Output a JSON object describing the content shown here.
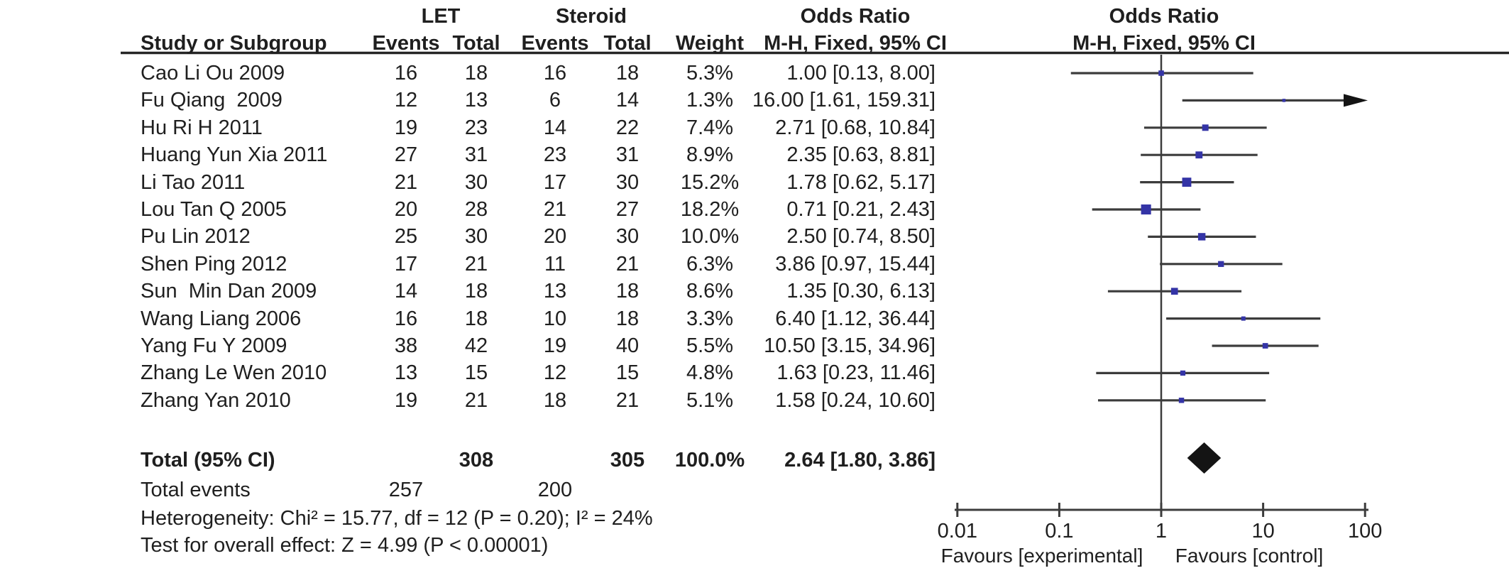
{
  "table": {
    "headers": {
      "study": "Study or Subgroup",
      "group1": "LET",
      "group2": "Steroid",
      "events1": "Events",
      "total1": "Total",
      "events2": "Events",
      "total2": "Total",
      "weight": "Weight",
      "or_title": "Odds Ratio",
      "or_method": "M-H, Fixed, 95% CI",
      "plot_title": "Odds Ratio",
      "plot_method": "M-H, Fixed, 95% CI"
    }
  },
  "footer": {
    "total_label": "Total (95% CI)",
    "total_t1": "308",
    "total_t2": "305",
    "total_weight": "100.0%",
    "total_or": "2.64 [1.80, 3.86]",
    "total_events_label": "Total events",
    "total_events_1": "257",
    "total_events_2": "200",
    "heterogeneity": "Heterogeneity: Chi² = 15.77, df = 12 (P = 0.20); I² = 24%",
    "overall_effect": "Test for overall effect: Z = 4.99 (P < 0.00001)"
  },
  "chart_data": {
    "type": "forest",
    "effect_measure": "Odds Ratio",
    "model": "M-H, Fixed, 95% CI",
    "x_axis": {
      "scale": "log",
      "ticks": [
        "0.01",
        "0.1",
        "1",
        "10",
        "100"
      ],
      "range": [
        0.01,
        100
      ],
      "label_left": "Favours [experimental]",
      "label_right": "Favours [control]"
    },
    "studies": [
      {
        "name": "Cao Li Ou 2009",
        "let_events": 16,
        "let_total": 18,
        "steroid_events": 16,
        "steroid_total": 18,
        "weight_label": "5.3%",
        "weight_pct": 5.3,
        "or": 1.0,
        "ci_low": 0.13,
        "ci_high": 8.0,
        "or_label": "1.00 [0.13, 8.00]"
      },
      {
        "name": "Fu Qiang  2009",
        "let_events": 12,
        "let_total": 13,
        "steroid_events": 6,
        "steroid_total": 14,
        "weight_label": "1.3%",
        "weight_pct": 1.3,
        "or": 16.0,
        "ci_low": 1.61,
        "ci_high": 159.31,
        "or_label": "16.00 [1.61, 159.31]"
      },
      {
        "name": "Hu Ri H 2011",
        "let_events": 19,
        "let_total": 23,
        "steroid_events": 14,
        "steroid_total": 22,
        "weight_label": "7.4%",
        "weight_pct": 7.4,
        "or": 2.71,
        "ci_low": 0.68,
        "ci_high": 10.84,
        "or_label": "2.71 [0.68, 10.84]"
      },
      {
        "name": "Huang Yun Xia 2011",
        "let_events": 27,
        "let_total": 31,
        "steroid_events": 23,
        "steroid_total": 31,
        "weight_label": "8.9%",
        "weight_pct": 8.9,
        "or": 2.35,
        "ci_low": 0.63,
        "ci_high": 8.81,
        "or_label": "2.35 [0.63, 8.81]"
      },
      {
        "name": "Li Tao 2011",
        "let_events": 21,
        "let_total": 30,
        "steroid_events": 17,
        "steroid_total": 30,
        "weight_label": "15.2%",
        "weight_pct": 15.2,
        "or": 1.78,
        "ci_low": 0.62,
        "ci_high": 5.17,
        "or_label": "1.78 [0.62, 5.17]"
      },
      {
        "name": "Lou Tan Q 2005",
        "let_events": 20,
        "let_total": 28,
        "steroid_events": 21,
        "steroid_total": 27,
        "weight_label": "18.2%",
        "weight_pct": 18.2,
        "or": 0.71,
        "ci_low": 0.21,
        "ci_high": 2.43,
        "or_label": "0.71 [0.21, 2.43]"
      },
      {
        "name": "Pu Lin 2012",
        "let_events": 25,
        "let_total": 30,
        "steroid_events": 20,
        "steroid_total": 30,
        "weight_label": "10.0%",
        "weight_pct": 10.0,
        "or": 2.5,
        "ci_low": 0.74,
        "ci_high": 8.5,
        "or_label": "2.50 [0.74, 8.50]"
      },
      {
        "name": "Shen Ping 2012",
        "let_events": 17,
        "let_total": 21,
        "steroid_events": 11,
        "steroid_total": 21,
        "weight_label": "6.3%",
        "weight_pct": 6.3,
        "or": 3.86,
        "ci_low": 0.97,
        "ci_high": 15.44,
        "or_label": "3.86 [0.97, 15.44]"
      },
      {
        "name": "Sun  Min Dan 2009",
        "let_events": 14,
        "let_total": 18,
        "steroid_events": 13,
        "steroid_total": 18,
        "weight_label": "8.6%",
        "weight_pct": 8.6,
        "or": 1.35,
        "ci_low": 0.3,
        "ci_high": 6.13,
        "or_label": "1.35 [0.30, 6.13]"
      },
      {
        "name": "Wang Liang 2006",
        "let_events": 16,
        "let_total": 18,
        "steroid_events": 10,
        "steroid_total": 18,
        "weight_label": "3.3%",
        "weight_pct": 3.3,
        "or": 6.4,
        "ci_low": 1.12,
        "ci_high": 36.44,
        "or_label": "6.40 [1.12, 36.44]"
      },
      {
        "name": "Yang Fu Y 2009",
        "let_events": 38,
        "let_total": 42,
        "steroid_events": 19,
        "steroid_total": 40,
        "weight_label": "5.5%",
        "weight_pct": 5.5,
        "or": 10.5,
        "ci_low": 3.15,
        "ci_high": 34.96,
        "or_label": "10.50 [3.15, 34.96]"
      },
      {
        "name": "Zhang Le Wen 2010",
        "let_events": 13,
        "let_total": 15,
        "steroid_events": 12,
        "steroid_total": 15,
        "weight_label": "4.8%",
        "weight_pct": 4.8,
        "or": 1.63,
        "ci_low": 0.23,
        "ci_high": 11.46,
        "or_label": "1.63 [0.23, 11.46]"
      },
      {
        "name": "Zhang Yan 2010",
        "let_events": 19,
        "let_total": 21,
        "steroid_events": 18,
        "steroid_total": 21,
        "weight_label": "5.1%",
        "weight_pct": 5.1,
        "or": 1.58,
        "ci_low": 0.24,
        "ci_high": 10.6,
        "or_label": "1.58 [0.24, 10.60]"
      }
    ],
    "overall": {
      "or": 2.64,
      "ci_low": 1.8,
      "ci_high": 3.86,
      "label": "2.64 [1.80, 3.86]"
    }
  },
  "colors": {
    "marker_blue": "#3434a6",
    "diamond_black": "#141414",
    "line_gray": "#3c3c3c",
    "rule_dark": "#262626",
    "text": "#1f1f1f"
  }
}
